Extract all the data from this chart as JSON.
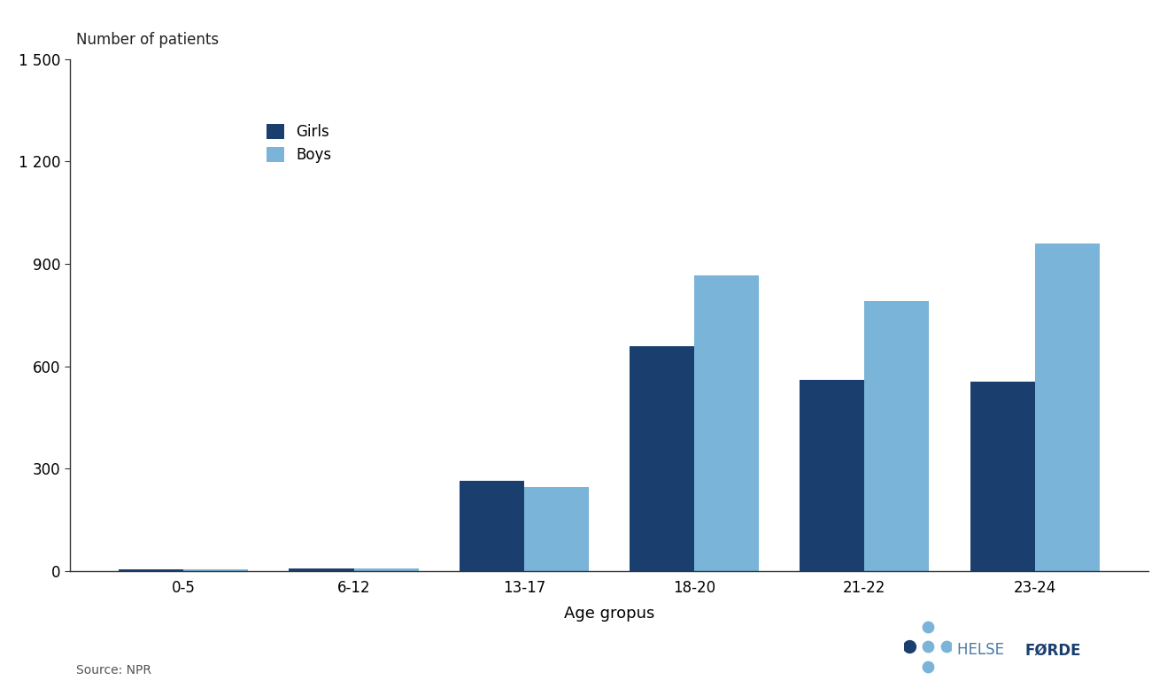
{
  "categories": [
    "0-5",
    "6-12",
    "13-17",
    "18-20",
    "21-22",
    "23-24"
  ],
  "girls": [
    5,
    8,
    265,
    660,
    560,
    555
  ],
  "boys": [
    5,
    8,
    245,
    865,
    790,
    960
  ],
  "color_girls": "#1a3f6f",
  "color_boys": "#7ab4d8",
  "ylabel": "Number of patients",
  "xlabel": "Age gropus",
  "ylim": [
    0,
    1500
  ],
  "yticks": [
    0,
    300,
    600,
    900,
    1200,
    1500
  ],
  "ytick_labels": [
    "0",
    "300",
    "600",
    "900",
    "1 200",
    "1 500"
  ],
  "legend_girls": "Girls",
  "legend_boys": "Boys",
  "source_text": "Source: NPR",
  "bar_width": 0.38,
  "background_color": "#ffffff",
  "helse_color": "#4a7ba6",
  "forde_color": "#1a3f6f"
}
